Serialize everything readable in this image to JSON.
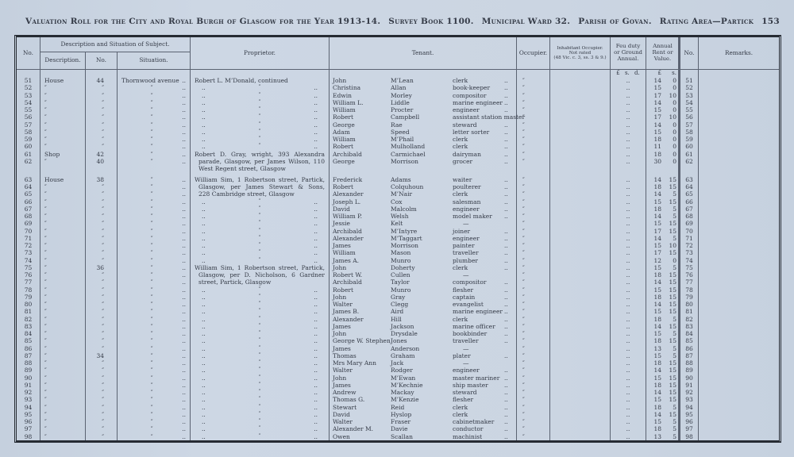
{
  "page_header": {
    "title": "Valuation Roll for the City and Royal Burgh of Glasgow for the Year 1913-14.",
    "survey": "Survey Book 1100.",
    "ward": "Municipal Ward 32.",
    "parish": "Parish of Govan.",
    "rating_area": "Rating Area—Partick",
    "page_number": "153"
  },
  "table": {
    "headers": {
      "no": "No.",
      "desc_group": "Description and Situation of Subject.",
      "description": "Description.",
      "street_no": "No.",
      "situation": "Situation.",
      "proprietor": "Proprietor.",
      "tenant": "Tenant.",
      "occupier": "Occupier.",
      "inhabitant": "Inhabitant Occupier.\nNot rated\n(48 Vic. c. 3, ss. 3 & 9.)",
      "feu": "Feu duty\nor Ground\nAnnual.",
      "rent": "Annual\nRent or\nValue.",
      "no2": "No.",
      "remarks": "Remarks."
    },
    "marks": {
      "dots": "..",
      "ditto": "″",
      "dash": "—"
    },
    "rows": [
      {
        "cls": "currency",
        "f": "£ s. d.",
        "rl": "£",
        "rs": "s."
      },
      {
        "n": "51",
        "d": "House",
        "sn": "44",
        "s": "Thornwood avenue",
        "pt": "t",
        "p": "Robert L. M’Donald, continued",
        "t1": "John",
        "t2": "M’Lean",
        "t3": "clerk",
        "td": 1,
        "rl": "14",
        "rs": "0"
      },
      {
        "n": "52",
        "d": "″",
        "sn": "″",
        "s": "″",
        "pt": "d",
        "t1": "Christina",
        "t2": "Allan",
        "t3": "book-keeper",
        "td": 1,
        "rl": "15",
        "rs": "0"
      },
      {
        "n": "53",
        "d": "″",
        "sn": "″",
        "s": "″",
        "pt": "d",
        "t1": "Edwin",
        "t2": "Morley",
        "t3": "compositor",
        "td": 1,
        "rl": "17",
        "rs": "10"
      },
      {
        "n": "54",
        "d": "″",
        "sn": "″",
        "s": "″",
        "pt": "d",
        "t1": "William L.",
        "t2": "Liddle",
        "t3": "marine engineer",
        "td": 1,
        "rl": "14",
        "rs": "0"
      },
      {
        "n": "55",
        "d": "″",
        "sn": "″",
        "s": "″",
        "pt": "d",
        "t1": "William",
        "t2": "Procter",
        "t3": "engineer",
        "td": 1,
        "rl": "15",
        "rs": "0"
      },
      {
        "n": "56",
        "d": "″",
        "sn": "″",
        "s": "″",
        "pt": "d",
        "t1": "Robert",
        "t2": "Campbell",
        "t3": "assistant station master",
        "td": 0,
        "rl": "17",
        "rs": "10"
      },
      {
        "n": "57",
        "d": "″",
        "sn": "″",
        "s": "″",
        "pt": "d",
        "t1": "George",
        "t2": "Rae",
        "t3": "steward",
        "td": 1,
        "rl": "14",
        "rs": "0"
      },
      {
        "n": "58",
        "d": "″",
        "sn": "″",
        "s": "″",
        "pt": "d",
        "t1": "Adam",
        "t2": "Speed",
        "t3": "letter sorter",
        "td": 1,
        "rl": "15",
        "rs": "0"
      },
      {
        "n": "59",
        "d": "″",
        "sn": "″",
        "s": "″",
        "pt": "d",
        "t1": "William",
        "t2": "M’Phail",
        "t3": "clerk",
        "td": 1,
        "rl": "18",
        "rs": "0"
      },
      {
        "n": "60",
        "d": "″",
        "sn": "″",
        "s": "″",
        "pt": "d",
        "t1": "Robert",
        "t2": "Mulholland",
        "t3": "clerk",
        "td": 1,
        "rl": "11",
        "rs": "0"
      },
      {
        "n": "61",
        "d": "Shop",
        "sn": "42",
        "s": "″",
        "pt": "j",
        "p": "Robert D. Gray, wright, 393 Alexandra",
        "t1": "Archibald",
        "t2": "Carmichael",
        "t3": "dairyman",
        "td": 1,
        "rl": "18",
        "rs": "0"
      },
      {
        "n": "62",
        "d": "″",
        "sn": "40",
        "s": "″",
        "pt": "c",
        "p": "parade, Glasgow, per James Wilson, 110",
        "t1": "George",
        "t2": "Morrison",
        "t3": "grocer",
        "td": 1,
        "rl": "30",
        "rs": "0"
      },
      {
        "pt": "cl",
        "p": "West Regent street, Glasgow"
      },
      {
        "cls": "spacer"
      },
      {
        "n": "63",
        "d": "House",
        "sn": "38",
        "s": "″",
        "pt": "j",
        "p": "William Sim, 1 Robertson street, Partick,",
        "t1": "Frederick",
        "t2": "Adams",
        "t3": "waiter",
        "td": 1,
        "rl": "14",
        "rs": "15"
      },
      {
        "n": "64",
        "d": "″",
        "sn": "″",
        "s": "″",
        "pt": "c",
        "p": "Glasgow, per James Stewart & Sons,",
        "t1": "Robert",
        "t2": "Colquhoun",
        "t3": "poulterer",
        "td": 1,
        "rl": "18",
        "rs": "15"
      },
      {
        "n": "65",
        "d": "″",
        "sn": "″",
        "s": "″",
        "pt": "cl",
        "p": "228 Cambridge street, Glasgow",
        "t1": "Alexander",
        "t2": "M’Nair",
        "t3": "clerk",
        "td": 1,
        "rl": "14",
        "rs": "5"
      },
      {
        "n": "66",
        "d": "″",
        "sn": "″",
        "s": "″",
        "pt": "d",
        "t1": "Joseph L.",
        "t2": "Cox",
        "t3": "salesman",
        "td": 1,
        "rl": "15",
        "rs": "15"
      },
      {
        "n": "67",
        "d": "″",
        "sn": "″",
        "s": "″",
        "pt": "d",
        "t1": "David",
        "t2": "Malcolm",
        "t3": "engineer",
        "td": 1,
        "rl": "18",
        "rs": "5"
      },
      {
        "n": "68",
        "d": "″",
        "sn": "″",
        "s": "″",
        "pt": "d",
        "t1": "William P.",
        "t2": "Welsh",
        "t3": "model maker",
        "td": 1,
        "rl": "14",
        "rs": "5"
      },
      {
        "n": "69",
        "d": "″",
        "sn": "″",
        "s": "″",
        "pt": "d",
        "t1": "Jessie",
        "t2": "Kelt",
        "t3": "—",
        "td": 0,
        "rl": "15",
        "rs": "15"
      },
      {
        "n": "70",
        "d": "″",
        "sn": "″",
        "s": "″",
        "pt": "d",
        "t1": "Archibald",
        "t2": "M’Intyre",
        "t3": "joiner",
        "td": 1,
        "rl": "17",
        "rs": "15"
      },
      {
        "n": "71",
        "d": "″",
        "sn": "″",
        "s": "″",
        "pt": "d",
        "t1": "Alexander",
        "t2": "M’Taggart",
        "t3": "engineer",
        "td": 1,
        "rl": "14",
        "rs": "5"
      },
      {
        "n": "72",
        "d": "″",
        "sn": "″",
        "s": "″",
        "pt": "d",
        "t1": "James",
        "t2": "Morrison",
        "t3": "painter",
        "td": 1,
        "rl": "15",
        "rs": "10"
      },
      {
        "n": "73",
        "d": "″",
        "sn": "″",
        "s": "″",
        "pt": "d",
        "t1": "William",
        "t2": "Mason",
        "t3": "traveller",
        "td": 1,
        "rl": "17",
        "rs": "15"
      },
      {
        "n": "74",
        "d": "″",
        "sn": "″",
        "s": "″",
        "pt": "d",
        "t1": "James A.",
        "t2": "Munro",
        "t3": "plumber",
        "td": 1,
        "rl": "12",
        "rs": "0"
      },
      {
        "n": "75",
        "d": "″",
        "sn": "36",
        "s": "″",
        "pt": "j",
        "p": "William Sim, 1 Robertson street, Partick,",
        "t1": "John",
        "t2": "Doherty",
        "t3": "clerk",
        "td": 1,
        "rl": "15",
        "rs": "5"
      },
      {
        "n": "76",
        "d": "″",
        "sn": "″",
        "s": "″",
        "pt": "c",
        "p": "Glasgow, per D. Nicholson, 6 Gardner",
        "t1": "Robert W.",
        "t2": "Cullen",
        "t3": "—",
        "td": 0,
        "rl": "18",
        "rs": "15"
      },
      {
        "n": "77",
        "d": "″",
        "sn": "″",
        "s": "″",
        "pt": "cl",
        "p": "street, Partick, Glasgow",
        "t1": "Archibald",
        "t2": "Taylor",
        "t3": "compositor",
        "td": 1,
        "rl": "14",
        "rs": "15"
      },
      {
        "n": "78",
        "d": "″",
        "sn": "″",
        "s": "″",
        "pt": "d",
        "t1": "Robert",
        "t2": "Munro",
        "t3": "flesher",
        "td": 1,
        "rl": "15",
        "rs": "15"
      },
      {
        "n": "79",
        "d": "″",
        "sn": "″",
        "s": "″",
        "pt": "d",
        "t1": "John",
        "t2": "Gray",
        "t3": "captain",
        "td": 1,
        "rl": "18",
        "rs": "15"
      },
      {
        "n": "80",
        "d": "″",
        "sn": "″",
        "s": "″",
        "pt": "d",
        "t1": "Walter",
        "t2": "Clegg",
        "t3": "evangelist",
        "td": 1,
        "rl": "14",
        "rs": "15"
      },
      {
        "n": "81",
        "d": "″",
        "sn": "″",
        "s": "″",
        "pt": "d",
        "t1": "James B.",
        "t2": "Aird",
        "t3": "marine engineer",
        "td": 1,
        "rl": "15",
        "rs": "15"
      },
      {
        "n": "82",
        "d": "″",
        "sn": "″",
        "s": "″",
        "pt": "d",
        "t1": "Alexander",
        "t2": "Hill",
        "t3": "clerk",
        "td": 1,
        "rl": "18",
        "rs": "5"
      },
      {
        "n": "83",
        "d": "″",
        "sn": "″",
        "s": "″",
        "pt": "d",
        "t1": "James",
        "t2": "Jackson",
        "t3": "marine officer",
        "td": 1,
        "rl": "14",
        "rs": "15"
      },
      {
        "n": "84",
        "d": "″",
        "sn": "″",
        "s": "″",
        "pt": "d",
        "t1": "John",
        "t2": "Drysdale",
        "t3": "bookbinder",
        "td": 1,
        "rl": "15",
        "rs": "5"
      },
      {
        "n": "85",
        "d": "″",
        "sn": "″",
        "s": "″",
        "pt": "d",
        "t1": "George W. Stephen",
        "t2": "Jones",
        "t3": "traveller",
        "td": 1,
        "rl": "18",
        "rs": "15"
      },
      {
        "n": "86",
        "d": "″",
        "sn": "″",
        "s": "″",
        "pt": "d",
        "t1": "James",
        "t2": "Anderson",
        "t3": "—",
        "td": 0,
        "rl": "13",
        "rs": "5"
      },
      {
        "n": "87",
        "d": "″",
        "sn": "34",
        "s": "″",
        "pt": "d",
        "t1": "Thomas",
        "t2": "Graham",
        "t3": "plater",
        "td": 1,
        "rl": "15",
        "rs": "5"
      },
      {
        "n": "88",
        "d": "″",
        "sn": "″",
        "s": "″",
        "pt": "d",
        "t1": "Mrs Mary Ann",
        "t2": "Jack",
        "t3": "—",
        "td": 0,
        "rl": "18",
        "rs": "15"
      },
      {
        "n": "89",
        "d": "″",
        "sn": "″",
        "s": "″",
        "pt": "d",
        "t1": "Walter",
        "t2": "Rodger",
        "t3": "engineer",
        "td": 1,
        "rl": "14",
        "rs": "15"
      },
      {
        "n": "90",
        "d": "″",
        "sn": "″",
        "s": "″",
        "pt": "d",
        "t1": "John",
        "t2": "M’Ewan",
        "t3": "master mariner",
        "td": 1,
        "rl": "15",
        "rs": "15"
      },
      {
        "n": "91",
        "d": "″",
        "sn": "″",
        "s": "″",
        "pt": "d",
        "t1": "James",
        "t2": "M’Kechnie",
        "t3": "ship master",
        "td": 1,
        "rl": "18",
        "rs": "15"
      },
      {
        "n": "92",
        "d": "″",
        "sn": "″",
        "s": "″",
        "pt": "d",
        "t1": "Andrew",
        "t2": "Mackay",
        "t3": "steward",
        "td": 1,
        "rl": "14",
        "rs": "15"
      },
      {
        "n": "93",
        "d": "″",
        "sn": "″",
        "s": "″",
        "pt": "d",
        "t1": "Thomas G.",
        "t2": "M’Kenzie",
        "t3": "flesher",
        "td": 1,
        "rl": "15",
        "rs": "15"
      },
      {
        "n": "94",
        "d": "″",
        "sn": "″",
        "s": "″",
        "pt": "d",
        "t1": "Stewart",
        "t2": "Reid",
        "t3": "clerk",
        "td": 1,
        "rl": "18",
        "rs": "5"
      },
      {
        "n": "95",
        "d": "″",
        "sn": "″",
        "s": "″",
        "pt": "d",
        "t1": "David",
        "t2": "Hyslop",
        "t3": "clerk",
        "td": 1,
        "rl": "14",
        "rs": "15"
      },
      {
        "n": "96",
        "d": "″",
        "sn": "″",
        "s": "″",
        "pt": "d",
        "t1": "Walter",
        "t2": "Fraser",
        "t3": "cabinetmaker",
        "td": 1,
        "rl": "15",
        "rs": "5"
      },
      {
        "n": "97",
        "d": "″",
        "sn": "″",
        "s": "″",
        "pt": "d",
        "t1": "Alexander M.",
        "t2": "Davie",
        "t3": "conductor",
        "td": 1,
        "rl": "18",
        "rs": "5"
      },
      {
        "n": "98",
        "d": "″",
        "sn": "″",
        "s": "″",
        "pt": "d",
        "t1": "Owen",
        "t2": "Scallan",
        "t3": "machinist",
        "td": 1,
        "rl": "13",
        "rs": "5"
      }
    ]
  }
}
